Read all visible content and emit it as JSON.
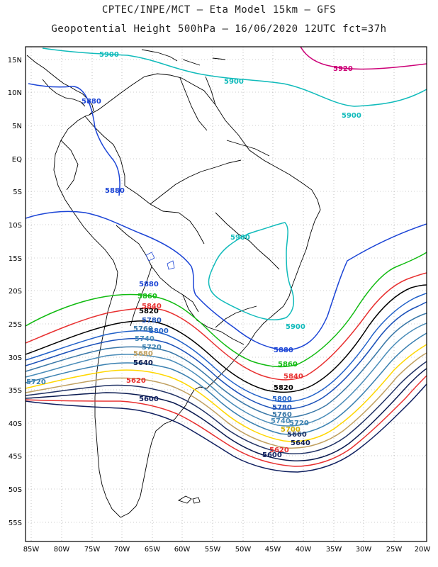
{
  "header": {
    "line1": "CPTEC/INPE/MCT –  Eta Model 15km – GFS",
    "line2": "Geopotential Height 500hPa – 16/06/2020 12UTC fct=37h"
  },
  "axes": {
    "lon_labels": [
      "85W",
      "80W",
      "75W",
      "70W",
      "65W",
      "60W",
      "55W",
      "50W",
      "45W",
      "40W",
      "35W",
      "30W",
      "25W",
      "20W"
    ],
    "lat_labels": [
      "15N",
      "10N",
      "5N",
      "EQ",
      "5S",
      "10S",
      "15S",
      "20S",
      "25S",
      "30S",
      "35S",
      "40S",
      "45S",
      "50S",
      "55S"
    ]
  },
  "contours": [
    {
      "value": "5920",
      "color": "#cc0077"
    },
    {
      "value": "5900",
      "color": "#11bbbb"
    },
    {
      "value": "5880",
      "color": "#1c45d6"
    },
    {
      "value": "5860",
      "color": "#11bb11"
    },
    {
      "value": "5840",
      "color": "#e83030"
    },
    {
      "value": "5820",
      "color": "#000000"
    },
    {
      "value": "5800",
      "color": "#2060c8"
    },
    {
      "value": "5780",
      "color": "#1a50b8"
    },
    {
      "value": "5760",
      "color": "#3a78a8"
    },
    {
      "value": "5740",
      "color": "#4a8cb8"
    },
    {
      "value": "5720",
      "color": "#3a80b0"
    },
    {
      "value": "5700",
      "color": "#ffd700"
    },
    {
      "value": "5680",
      "color": "#c0a060"
    },
    {
      "value": "5660",
      "color": "#223366"
    },
    {
      "value": "5640",
      "color": "#0a1a50"
    },
    {
      "value": "5620",
      "color": "#e83030"
    },
    {
      "value": "5600",
      "color": "#102060"
    }
  ],
  "labels": {
    "l5920": "5920",
    "l5900a": "5900",
    "l5900b": "5900",
    "l5900c": "5900",
    "l5900d": "5900",
    "l5900e": "5900",
    "l5880a": "5880",
    "l5880b": "5880",
    "l5880c": "5880",
    "l5880d": "5880",
    "l5860a": "5860",
    "l5860b": "5860",
    "l5840a": "5840",
    "l5840b": "5840",
    "l5820a": "5820",
    "l5820b": "5820",
    "l5800a": "5800",
    "l5800b": "5800",
    "l5780a": "5780",
    "l5780b": "5780",
    "l5760a": "5760",
    "l5760b": "5760",
    "l5740a": "5740",
    "l5740b": "5740",
    "l5720a": "5720",
    "l5720b": "5720",
    "l5720c": "5720",
    "l5700": "5700",
    "l5680": "5680",
    "l5660": "5660",
    "l5640a": "5640",
    "l5640b": "5640",
    "l5620a": "5620",
    "l5620b": "5620",
    "l5600a": "5600",
    "l5600b": "5600"
  }
}
